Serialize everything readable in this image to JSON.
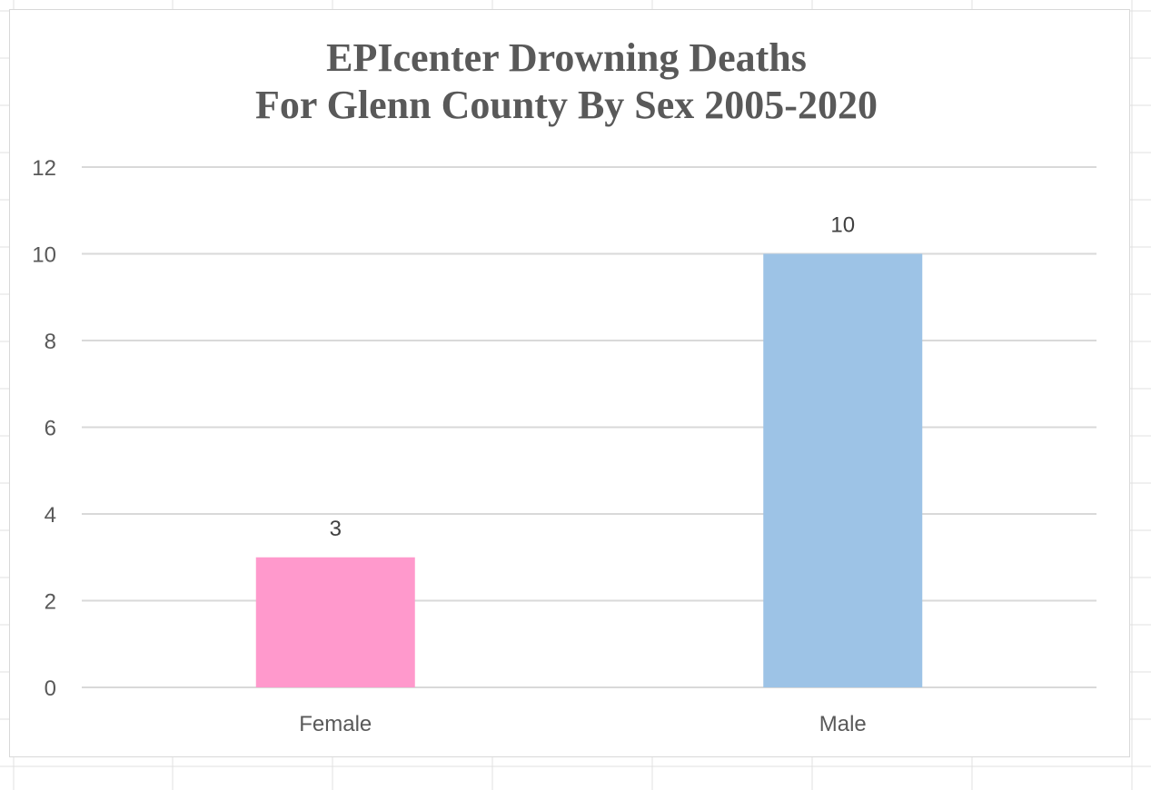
{
  "chart_data": {
    "type": "bar",
    "title_lines": [
      "EPIcenter Drowning Deaths",
      "For Glenn County By Sex 2005-2020"
    ],
    "categories": [
      "Female",
      "Male"
    ],
    "values": [
      3,
      10
    ],
    "bar_colors": [
      "#ff99cc",
      "#9dc3e6"
    ],
    "data_labels": [
      "3",
      "10"
    ],
    "y_ticks": [
      "0",
      "2",
      "4",
      "6",
      "8",
      "10",
      "12"
    ],
    "ylim": [
      0,
      12
    ],
    "xlabel": "",
    "ylabel": "",
    "grid": true,
    "legend": "none"
  },
  "colors": {
    "gridline": "#d9d9d9",
    "text": "#595959",
    "sheet_grid": "#e1e1e1"
  }
}
